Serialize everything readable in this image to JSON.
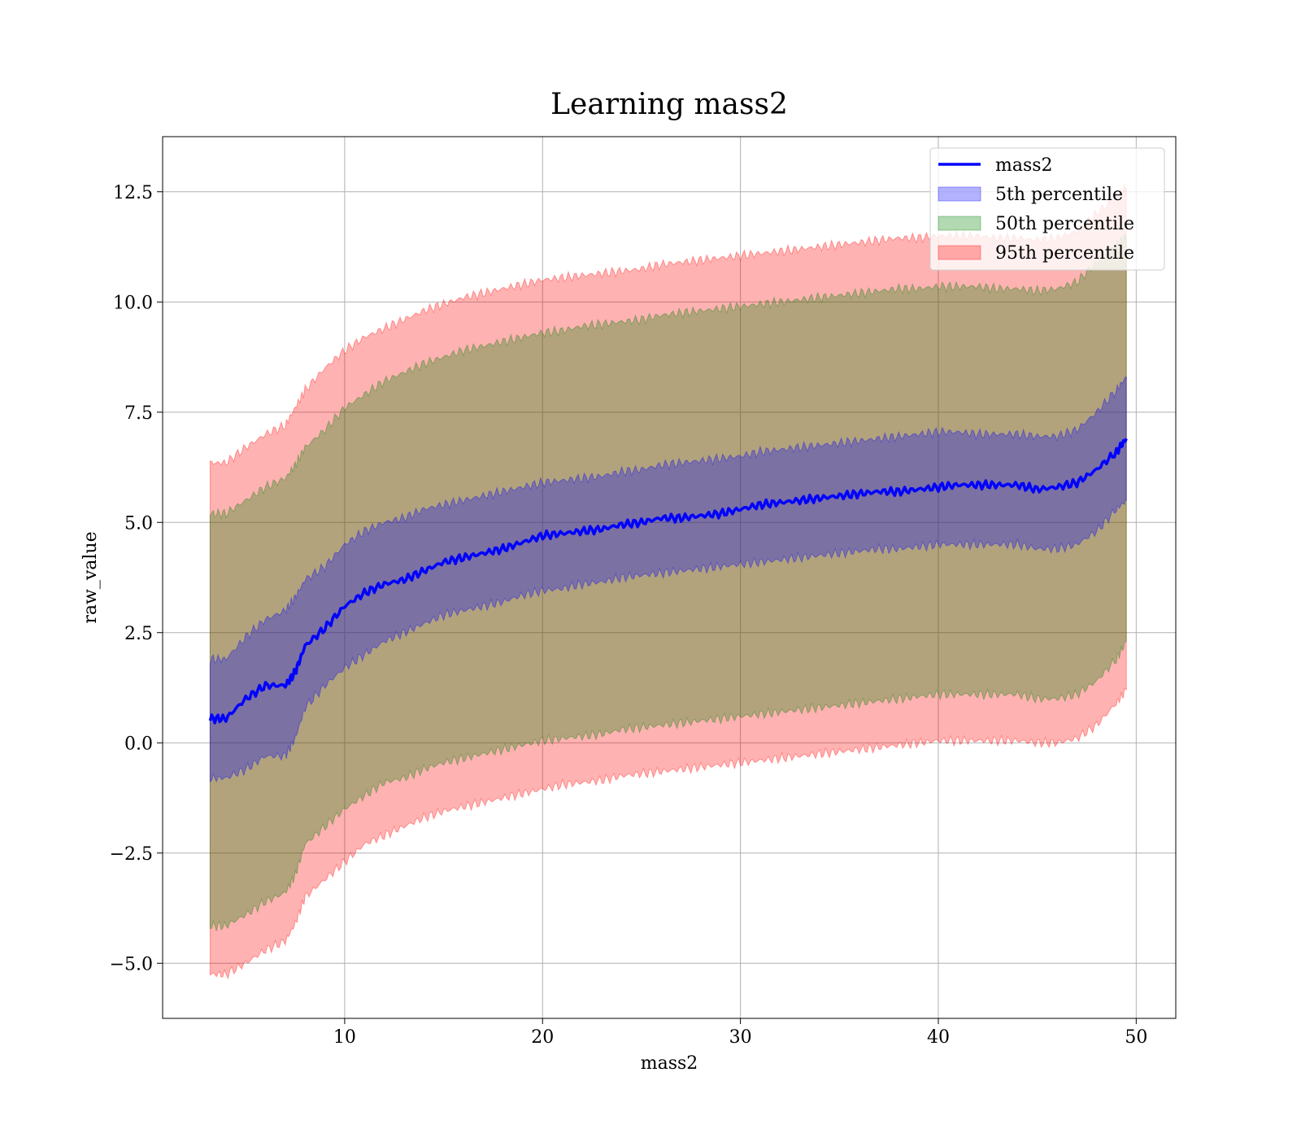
{
  "chart_data": {
    "type": "area",
    "title": "Learning mass2",
    "xlabel": "mass2",
    "ylabel": "raw_value",
    "xlim": [
      0.8,
      52.0
    ],
    "ylim": [
      -6.25,
      13.75
    ],
    "xticks": [
      10,
      20,
      30,
      40,
      50
    ],
    "xtick_labels": [
      "10",
      "20",
      "30",
      "40",
      "50"
    ],
    "yticks": [
      -5.0,
      -2.5,
      0.0,
      2.5,
      5.0,
      7.5,
      10.0,
      12.5
    ],
    "ytick_labels": [
      "−5.0",
      "−2.5",
      "0.0",
      "2.5",
      "5.0",
      "7.5",
      "10.0",
      "12.5"
    ],
    "grid": true,
    "legend_position": "upper-right",
    "colors": {
      "line": "#0000ff",
      "band_5th": "#0000ff",
      "band_50th": "#008000",
      "band_95th": "#ff0000"
    },
    "x": [
      3.2,
      4,
      5,
      6,
      7,
      7.5,
      8,
      9,
      10,
      11,
      12,
      13,
      14,
      15,
      16,
      17,
      18,
      19,
      20,
      21,
      22,
      23,
      24,
      25,
      26,
      27,
      28,
      29,
      30,
      31,
      32,
      33,
      34,
      35,
      36,
      37,
      38,
      39,
      40,
      41,
      42,
      43,
      44,
      45,
      46,
      47,
      48,
      49,
      49.5
    ],
    "series": [
      {
        "name": "mass2",
        "kind": "line",
        "values": [
          0.55,
          0.55,
          1.0,
          1.3,
          1.3,
          1.6,
          2.2,
          2.6,
          3.1,
          3.4,
          3.6,
          3.7,
          3.9,
          4.1,
          4.2,
          4.3,
          4.4,
          4.55,
          4.7,
          4.75,
          4.8,
          4.85,
          4.95,
          5.0,
          5.1,
          5.1,
          5.15,
          5.2,
          5.3,
          5.4,
          5.45,
          5.5,
          5.55,
          5.6,
          5.65,
          5.7,
          5.7,
          5.75,
          5.8,
          5.85,
          5.85,
          5.85,
          5.85,
          5.75,
          5.8,
          5.9,
          6.2,
          6.6,
          6.9
        ]
      },
      {
        "name": "5th percentile",
        "kind": "band",
        "lower": [
          -0.8,
          -0.8,
          -0.6,
          -0.3,
          -0.3,
          0.1,
          0.8,
          1.3,
          1.7,
          2.0,
          2.3,
          2.5,
          2.7,
          2.9,
          3.0,
          3.1,
          3.2,
          3.35,
          3.45,
          3.5,
          3.6,
          3.65,
          3.75,
          3.8,
          3.85,
          3.9,
          3.95,
          4.0,
          4.05,
          4.1,
          4.15,
          4.2,
          4.25,
          4.3,
          4.35,
          4.4,
          4.4,
          4.45,
          4.5,
          4.5,
          4.5,
          4.5,
          4.5,
          4.4,
          4.4,
          4.5,
          4.8,
          5.3,
          5.5
        ],
        "upper": [
          1.9,
          1.9,
          2.4,
          2.8,
          3.0,
          3.3,
          3.7,
          4.0,
          4.5,
          4.8,
          5.0,
          5.1,
          5.3,
          5.4,
          5.5,
          5.6,
          5.7,
          5.8,
          5.9,
          5.95,
          6.0,
          6.05,
          6.15,
          6.2,
          6.3,
          6.35,
          6.4,
          6.45,
          6.5,
          6.6,
          6.65,
          6.7,
          6.75,
          6.8,
          6.85,
          6.9,
          6.95,
          7.0,
          7.05,
          7.05,
          7.0,
          7.0,
          7.0,
          6.95,
          6.95,
          7.1,
          7.5,
          8.0,
          8.3
        ]
      },
      {
        "name": "50th percentile",
        "kind": "band",
        "lower": [
          -4.15,
          -4.15,
          -3.9,
          -3.6,
          -3.4,
          -3.0,
          -2.3,
          -1.9,
          -1.5,
          -1.2,
          -0.9,
          -0.8,
          -0.6,
          -0.45,
          -0.35,
          -0.25,
          -0.15,
          -0.05,
          0.05,
          0.1,
          0.15,
          0.2,
          0.3,
          0.35,
          0.4,
          0.45,
          0.5,
          0.55,
          0.6,
          0.65,
          0.7,
          0.75,
          0.8,
          0.85,
          0.9,
          0.95,
          1.0,
          1.05,
          1.1,
          1.1,
          1.1,
          1.1,
          1.1,
          1.0,
          1.0,
          1.1,
          1.4,
          1.9,
          2.3
        ],
        "upper": [
          5.2,
          5.2,
          5.5,
          5.8,
          6.0,
          6.3,
          6.7,
          7.1,
          7.6,
          7.9,
          8.2,
          8.4,
          8.6,
          8.75,
          8.9,
          9.0,
          9.1,
          9.2,
          9.3,
          9.35,
          9.45,
          9.5,
          9.55,
          9.6,
          9.7,
          9.75,
          9.8,
          9.85,
          9.9,
          9.95,
          10.0,
          10.05,
          10.1,
          10.15,
          10.2,
          10.25,
          10.3,
          10.3,
          10.35,
          10.35,
          10.35,
          10.3,
          10.3,
          10.25,
          10.3,
          10.45,
          10.9,
          11.3,
          11.5
        ]
      },
      {
        "name": "95th percentile",
        "kind": "band",
        "lower": [
          -5.25,
          -5.25,
          -5.0,
          -4.7,
          -4.5,
          -4.1,
          -3.5,
          -3.1,
          -2.7,
          -2.3,
          -2.1,
          -1.9,
          -1.7,
          -1.55,
          -1.45,
          -1.35,
          -1.25,
          -1.15,
          -1.05,
          -0.95,
          -0.9,
          -0.85,
          -0.75,
          -0.7,
          -0.65,
          -0.6,
          -0.55,
          -0.5,
          -0.45,
          -0.4,
          -0.35,
          -0.3,
          -0.25,
          -0.2,
          -0.15,
          -0.1,
          -0.05,
          0.0,
          0.05,
          0.05,
          0.05,
          0.05,
          0.05,
          0.0,
          0.0,
          0.1,
          0.4,
          0.9,
          1.2
        ],
        "upper": [
          6.35,
          6.35,
          6.7,
          7.0,
          7.2,
          7.6,
          8.0,
          8.5,
          8.9,
          9.2,
          9.4,
          9.6,
          9.8,
          9.95,
          10.1,
          10.2,
          10.3,
          10.4,
          10.5,
          10.55,
          10.6,
          10.65,
          10.7,
          10.75,
          10.85,
          10.9,
          10.95,
          11.0,
          11.05,
          11.1,
          11.15,
          11.2,
          11.25,
          11.3,
          11.35,
          11.4,
          11.45,
          11.45,
          11.5,
          11.5,
          11.5,
          11.45,
          11.45,
          11.4,
          11.45,
          11.6,
          12.0,
          12.4,
          12.6
        ]
      }
    ],
    "legend": [
      {
        "label": "mass2",
        "kind": "line",
        "color": "#0000ff"
      },
      {
        "label": "5th percentile",
        "kind": "patch",
        "color": "#0000ff"
      },
      {
        "label": "50th percentile",
        "kind": "patch",
        "color": "#008000"
      },
      {
        "label": "95th percentile",
        "kind": "patch",
        "color": "#ff0000"
      }
    ]
  }
}
